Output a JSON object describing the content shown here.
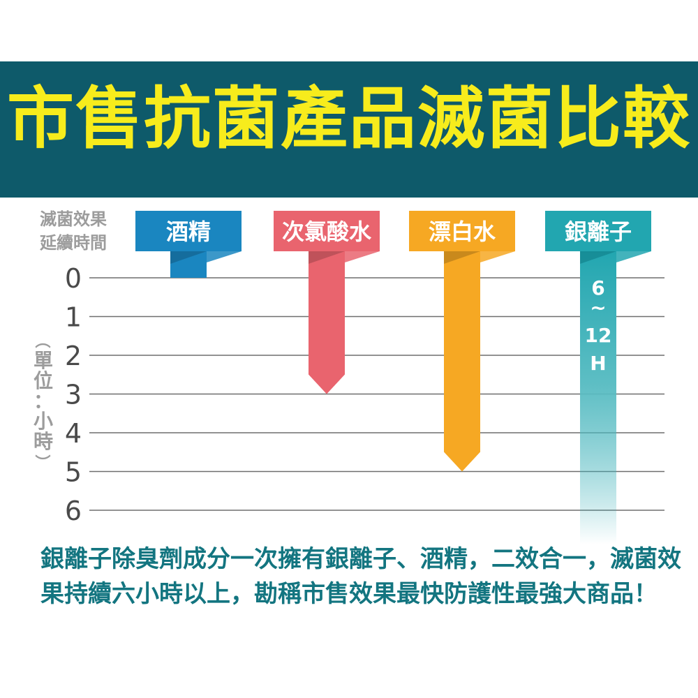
{
  "title": "市售抗菌產品滅菌比較",
  "chart_data": {
    "type": "bar",
    "title": "市售抗菌產品滅菌比較",
    "ylabel_lines": [
      "滅菌效果",
      "延續時間"
    ],
    "unit_label": "（單位：小時）",
    "y_ticks": [
      0,
      1,
      2,
      3,
      4,
      5,
      6
    ],
    "ylim": [
      0,
      6
    ],
    "grid": true,
    "categories": [
      "酒精",
      "次氯酸水",
      "漂白水",
      "銀離子"
    ],
    "values": [
      0,
      3,
      5,
      6
    ],
    "colors": [
      "#1a86c0",
      "#e9646e",
      "#f6a823",
      "#22a6b0"
    ],
    "annotations": [
      {
        "category": "銀離子",
        "lines": [
          "6",
          "~",
          "12",
          "H"
        ]
      }
    ]
  },
  "footer": {
    "line1": "銀離子除臭劑成分一次擁有銀離子、酒精，二效合一，滅菌效",
    "line2": "果持續六小時以上，勘稱市售效果最快防護性最強大商品！"
  }
}
